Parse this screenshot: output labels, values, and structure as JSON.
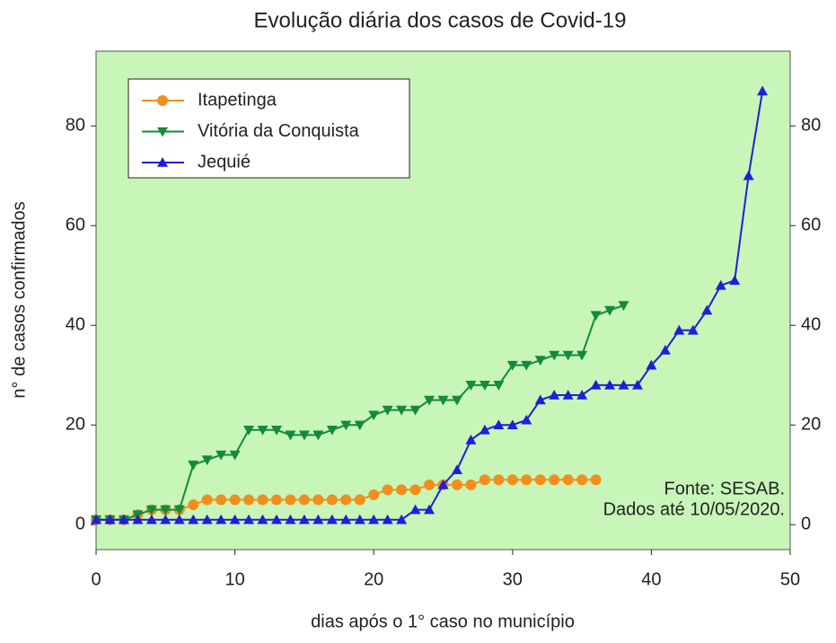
{
  "chart_data": {
    "type": "line",
    "title": "Evolução diária dos casos de Covid-19",
    "xlabel": "dias após o 1° caso no município",
    "ylabel": "n° de casos confirmados",
    "annotations": [
      "Fonte: SESAB.",
      "Dados até 10/05/2020."
    ],
    "xlim": [
      0,
      50
    ],
    "xticks": [
      0,
      10,
      20,
      30,
      40,
      50
    ],
    "ylim": [
      -5,
      95
    ],
    "yticks": [
      0,
      20,
      40,
      60,
      80
    ],
    "y2lim": [
      -5,
      95
    ],
    "y2ticks": [
      0,
      20,
      40,
      60,
      80
    ],
    "legend": "upper left",
    "series": [
      {
        "name": "Itapetinga",
        "color": "#f28e1c",
        "marker": "circle",
        "x": [
          0,
          1,
          2,
          3,
          4,
          5,
          6,
          7,
          8,
          9,
          10,
          11,
          12,
          13,
          14,
          15,
          16,
          17,
          18,
          19,
          20,
          21,
          22,
          23,
          24,
          25,
          26,
          27,
          28,
          29,
          30,
          31,
          32,
          33,
          34,
          35,
          36
        ],
        "values": [
          1,
          1,
          1,
          2,
          3,
          3,
          3,
          4,
          5,
          5,
          5,
          5,
          5,
          5,
          5,
          5,
          5,
          5,
          5,
          5,
          6,
          7,
          7,
          7,
          8,
          8,
          8,
          8,
          9,
          9,
          9,
          9,
          9,
          9,
          9,
          9,
          9
        ]
      },
      {
        "name": "Vitória da Conquista",
        "color": "#138a3e",
        "marker": "triangle-down",
        "x": [
          0,
          1,
          2,
          3,
          4,
          5,
          6,
          7,
          8,
          9,
          10,
          11,
          12,
          13,
          14,
          15,
          16,
          17,
          18,
          19,
          20,
          21,
          22,
          23,
          24,
          25,
          26,
          27,
          28,
          29,
          30,
          31,
          32,
          33,
          34,
          35,
          36,
          37,
          38
        ],
        "values": [
          1,
          1,
          1,
          2,
          3,
          3,
          3,
          12,
          13,
          14,
          14,
          19,
          19,
          19,
          18,
          18,
          18,
          19,
          20,
          20,
          22,
          23,
          23,
          23,
          25,
          25,
          25,
          28,
          28,
          28,
          32,
          32,
          33,
          34,
          34,
          34,
          42,
          43,
          44
        ]
      },
      {
        "name": "Jequié",
        "color": "#1f1fd6",
        "marker": "triangle-up",
        "x": [
          0,
          1,
          2,
          3,
          4,
          5,
          6,
          7,
          8,
          9,
          10,
          11,
          12,
          13,
          14,
          15,
          16,
          17,
          18,
          19,
          20,
          21,
          22,
          23,
          24,
          25,
          26,
          27,
          28,
          29,
          30,
          31,
          32,
          33,
          34,
          35,
          36,
          37,
          38,
          39,
          40,
          41,
          42,
          43,
          44,
          45,
          46,
          47,
          48
        ],
        "values": [
          1,
          1,
          1,
          1,
          1,
          1,
          1,
          1,
          1,
          1,
          1,
          1,
          1,
          1,
          1,
          1,
          1,
          1,
          1,
          1,
          1,
          1,
          1,
          3,
          3,
          8,
          11,
          17,
          19,
          20,
          20,
          21,
          25,
          26,
          26,
          26,
          28,
          28,
          28,
          28,
          32,
          35,
          39,
          39,
          43,
          48,
          49,
          70,
          87
        ]
      }
    ]
  }
}
